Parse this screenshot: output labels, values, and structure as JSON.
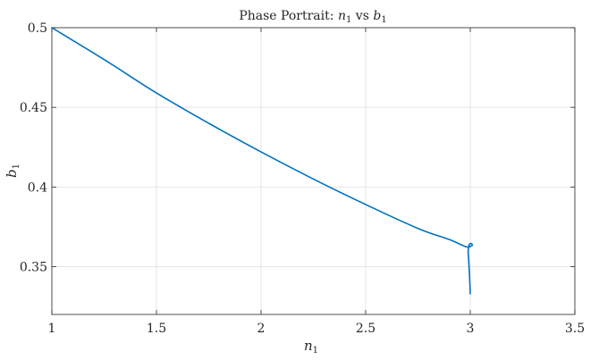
{
  "chart_data": {
    "type": "line",
    "title": {
      "prefix": "Phase Portrait: ",
      "var1": "n",
      "var1_sub": "1",
      "mid": " vs ",
      "var2": "b",
      "var2_sub": "1"
    },
    "xlabel": {
      "var": "n",
      "sub": "1"
    },
    "ylabel": {
      "var": "b",
      "sub": "1"
    },
    "xlim": [
      1,
      3.5
    ],
    "ylim": [
      0.32,
      0.5
    ],
    "xticks": [
      1,
      1.5,
      2,
      2.5,
      3,
      3.5
    ],
    "xtick_labels": [
      "1",
      "1.5",
      "2",
      "2.5",
      "3",
      "3.5"
    ],
    "yticks": [
      0.35,
      0.4,
      0.45,
      0.5
    ],
    "ytick_labels": [
      "0.35",
      "0.4",
      "0.45",
      "0.5"
    ],
    "grid": true,
    "line_color": "#0072BD",
    "series": [
      {
        "x": [
          1.0,
          1.25,
          1.5,
          1.75,
          2.0,
          2.25,
          2.5,
          2.75,
          2.9,
          2.98,
          3.005,
          3.01,
          3.005,
          2.995,
          2.99,
          2.992,
          2.995,
          2.998,
          3.0
        ],
        "y": [
          0.5,
          0.48,
          0.459,
          0.44,
          0.422,
          0.405,
          0.389,
          0.374,
          0.367,
          0.3625,
          0.363,
          0.3635,
          0.3645,
          0.3638,
          0.36,
          0.355,
          0.348,
          0.34,
          0.333
        ]
      }
    ]
  }
}
